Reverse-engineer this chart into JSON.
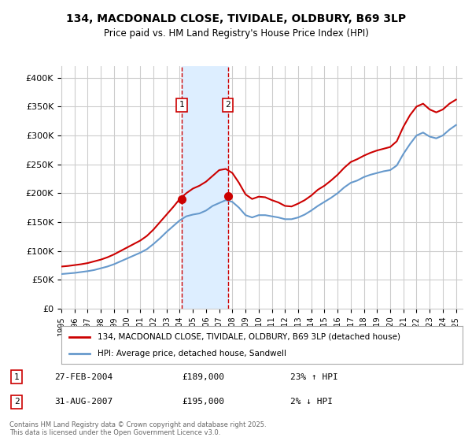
{
  "title": "134, MACDONALD CLOSE, TIVIDALE, OLDBURY, B69 3LP",
  "subtitle": "Price paid vs. HM Land Registry's House Price Index (HPI)",
  "ylabel_ticks": [
    "£0",
    "£50K",
    "£100K",
    "£150K",
    "£200K",
    "£250K",
    "£300K",
    "£350K",
    "£400K"
  ],
  "ytick_values": [
    0,
    50000,
    100000,
    150000,
    200000,
    250000,
    300000,
    350000,
    400000
  ],
  "ylim": [
    0,
    420000
  ],
  "xlim_start": 1995.0,
  "xlim_end": 2025.5,
  "sale1": {
    "label": "1",
    "date": "27-FEB-2004",
    "price": 189000,
    "x": 2004.15,
    "hpi_change": "23% ↑ HPI"
  },
  "sale2": {
    "label": "2",
    "date": "31-AUG-2007",
    "price": 195000,
    "x": 2007.65,
    "hpi_change": "2% ↓ HPI"
  },
  "legend_house": "134, MACDONALD CLOSE, TIVIDALE, OLDBURY, B69 3LP (detached house)",
  "legend_hpi": "HPI: Average price, detached house, Sandwell",
  "footer": "Contains HM Land Registry data © Crown copyright and database right 2025.\nThis data is licensed under the Open Government Licence v3.0.",
  "house_color": "#cc0000",
  "hpi_color": "#6699cc",
  "shade_color": "#ddeeff",
  "grid_color": "#cccccc",
  "bg_color": "#ffffff",
  "hpi_data_x": [
    1995,
    1995.5,
    1996,
    1996.5,
    1997,
    1997.5,
    1998,
    1998.5,
    1999,
    1999.5,
    2000,
    2000.5,
    2001,
    2001.5,
    2002,
    2002.5,
    2003,
    2003.5,
    2004,
    2004.5,
    2005,
    2005.5,
    2006,
    2006.5,
    2007,
    2007.5,
    2008,
    2008.5,
    2009,
    2009.5,
    2010,
    2010.5,
    2011,
    2011.5,
    2012,
    2012.5,
    2013,
    2013.5,
    2014,
    2014.5,
    2015,
    2015.5,
    2016,
    2016.5,
    2017,
    2017.5,
    2018,
    2018.5,
    2019,
    2019.5,
    2020,
    2020.5,
    2021,
    2021.5,
    2022,
    2022.5,
    2023,
    2023.5,
    2024,
    2024.5,
    2025
  ],
  "hpi_data_y": [
    60000,
    61000,
    62000,
    63500,
    65000,
    67000,
    70000,
    73000,
    77000,
    82000,
    87000,
    92000,
    97000,
    103000,
    112000,
    122000,
    133000,
    143000,
    153000,
    160000,
    163000,
    165000,
    170000,
    178000,
    183000,
    188000,
    185000,
    175000,
    162000,
    158000,
    162000,
    162000,
    160000,
    158000,
    155000,
    155000,
    158000,
    163000,
    170000,
    178000,
    185000,
    192000,
    200000,
    210000,
    218000,
    222000,
    228000,
    232000,
    235000,
    238000,
    240000,
    248000,
    268000,
    285000,
    300000,
    305000,
    298000,
    295000,
    300000,
    310000,
    318000
  ],
  "house_data_x": [
    1995,
    1995.5,
    1996,
    1996.5,
    1997,
    1997.5,
    1998,
    1998.5,
    1999,
    1999.5,
    2000,
    2000.5,
    2001,
    2001.5,
    2002,
    2002.5,
    2003,
    2003.5,
    2004,
    2004.5,
    2005,
    2005.5,
    2006,
    2006.5,
    2007,
    2007.5,
    2008,
    2008.5,
    2009,
    2009.5,
    2010,
    2010.5,
    2011,
    2011.5,
    2012,
    2012.5,
    2013,
    2013.5,
    2014,
    2014.5,
    2015,
    2015.5,
    2016,
    2016.5,
    2017,
    2017.5,
    2018,
    2018.5,
    2019,
    2019.5,
    2020,
    2020.5,
    2021,
    2021.5,
    2022,
    2022.5,
    2023,
    2023.5,
    2024,
    2024.5,
    2025
  ],
  "house_data_y": [
    73000,
    74000,
    75500,
    77000,
    79000,
    82000,
    85000,
    89000,
    94000,
    100000,
    106000,
    112000,
    118000,
    126000,
    137000,
    150000,
    163000,
    176000,
    190000,
    200000,
    208000,
    213000,
    220000,
    230000,
    240000,
    242000,
    235000,
    218000,
    198000,
    190000,
    194000,
    193000,
    188000,
    184000,
    178000,
    177000,
    182000,
    188000,
    196000,
    206000,
    213000,
    222000,
    232000,
    244000,
    254000,
    259000,
    265000,
    270000,
    274000,
    277000,
    280000,
    290000,
    315000,
    335000,
    350000,
    355000,
    345000,
    340000,
    345000,
    355000,
    362000
  ]
}
